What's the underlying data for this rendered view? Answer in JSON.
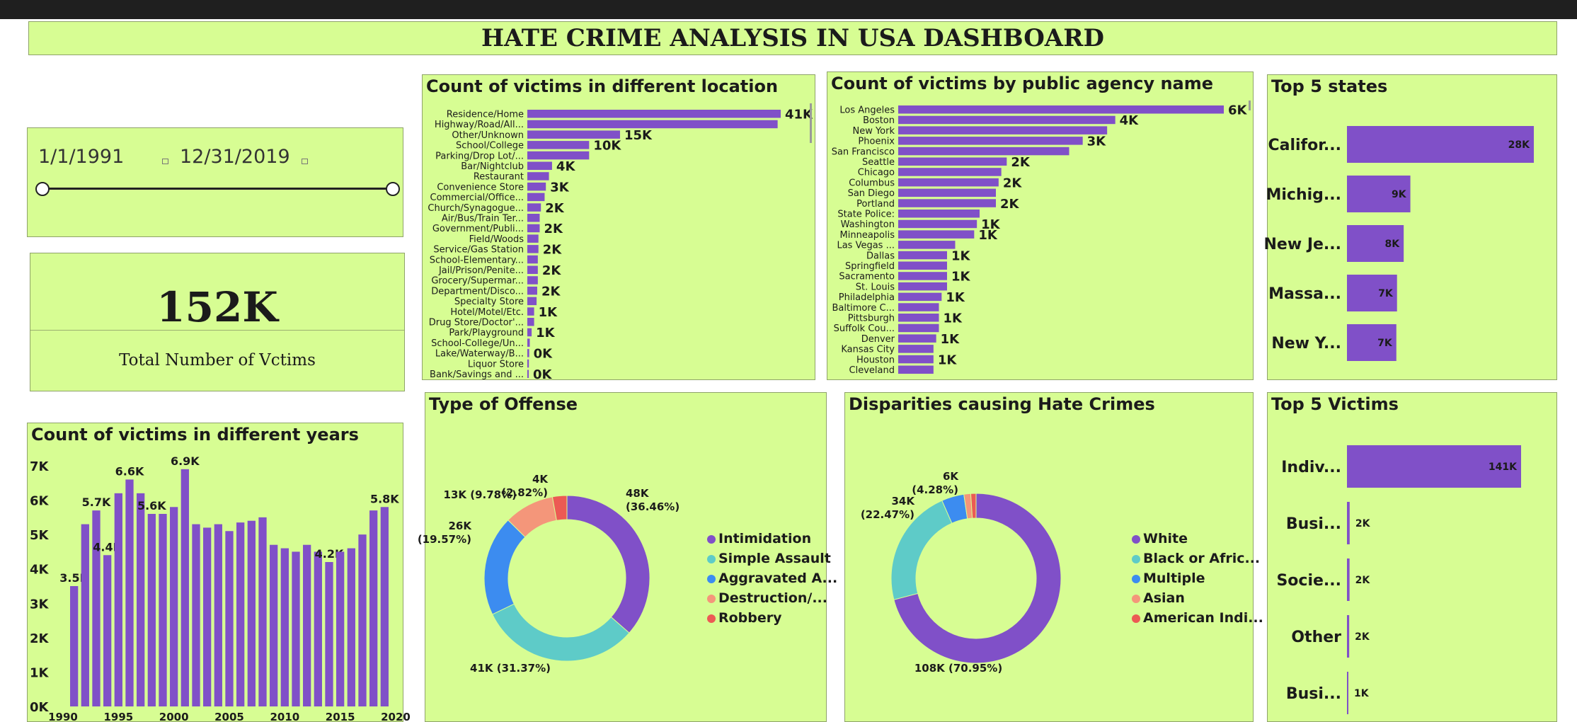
{
  "dashboard": {
    "title": "HATE CRIME ANALYSIS IN USA DASHBOARD",
    "colors": {
      "panel": "#d7fd93",
      "bar": "#8050c8",
      "topbar": "#1f1f1f"
    }
  },
  "date_slicer": {
    "start": "1/1/1991",
    "end": "12/31/2019",
    "range_position": [
      0,
      1
    ]
  },
  "kpi": {
    "value": "152K",
    "label": "Total Number of Vctims"
  },
  "chart_data": [
    {
      "id": "location",
      "type": "bar",
      "orientation": "horizontal",
      "title": "Count of victims in different location",
      "categories": [
        "Residence/Home",
        "Highway/Road/All...",
        "Other/Unknown",
        "School/College",
        "Parking/Drop Lot/...",
        "Bar/Nightclub",
        "Restaurant",
        "Convenience Store",
        "Commercial/Office...",
        "Church/Synagogue...",
        "Air/Bus/Train Ter...",
        "Government/Publi...",
        "Field/Woods",
        "Service/Gas Station",
        "School-Elementary...",
        "Jail/Prison/Penite...",
        "Grocery/Supermar...",
        "Department/Disco...",
        "Specialty Store",
        "Hotel/Motel/Etc.",
        "Drug Store/Doctor'...",
        "Park/Playground",
        "School-College/Un...",
        "Lake/Waterway/B...",
        "Liquor Store",
        "Bank/Savings and ..."
      ],
      "values": [
        41000,
        40500,
        15000,
        10000,
        10000,
        4000,
        3500,
        3000,
        2800,
        2200,
        2000,
        2000,
        1800,
        1800,
        1700,
        1700,
        1700,
        1600,
        1500,
        1100,
        1100,
        700,
        400,
        300,
        250,
        150
      ],
      "data_labels": [
        "41K",
        "",
        "15K",
        "10K",
        "",
        "4K",
        "",
        "3K",
        "",
        "2K",
        "",
        "2K",
        "",
        "2K",
        "",
        "2K",
        "",
        "2K",
        "",
        "1K",
        "",
        "1K",
        "",
        "0K",
        "",
        "0K"
      ]
    },
    {
      "id": "agency",
      "type": "bar",
      "orientation": "horizontal",
      "title": "Count of victims by public agency name",
      "categories": [
        "Los Angeles",
        "Boston",
        "New York",
        "Phoenix",
        "San Francisco",
        "Seattle",
        "Chicago",
        "Columbus",
        "San Diego",
        "Portland",
        "State Police:",
        "Washington",
        "Minneapolis",
        "Las Vegas ...",
        "Dallas",
        "Springfield",
        "Sacramento",
        "St. Louis",
        "Philadelphia",
        "Baltimore C...",
        "Pittsburgh",
        "Suffolk Cou...",
        "Denver",
        "Kansas City",
        "Houston",
        "Cleveland"
      ],
      "values": [
        6000,
        4000,
        3850,
        3400,
        3150,
        2000,
        1900,
        1850,
        1800,
        1800,
        1500,
        1450,
        1400,
        1050,
        900,
        900,
        900,
        900,
        800,
        750,
        750,
        750,
        700,
        650,
        650,
        650
      ],
      "data_labels": [
        "6K",
        "4K",
        "",
        "3K",
        "",
        "2K",
        "",
        "2K",
        "",
        "2K",
        "",
        "1K",
        "1K",
        "",
        "1K",
        "",
        "1K",
        "",
        "1K",
        "",
        "1K",
        "",
        "1K",
        "",
        "1K",
        ""
      ]
    },
    {
      "id": "states",
      "type": "bar",
      "orientation": "horizontal",
      "title": "Top 5 states",
      "categories": [
        "Califor...",
        "Michig...",
        "New Je...",
        "Massa...",
        "New Y..."
      ],
      "values": [
        28000,
        9500,
        8500,
        7500,
        7400
      ],
      "data_labels": [
        "28K",
        "9K",
        "8K",
        "7K",
        "7K"
      ]
    },
    {
      "id": "years",
      "type": "bar",
      "title": "Count of victims in different years",
      "x": [
        1991,
        1992,
        1993,
        1994,
        1995,
        1996,
        1997,
        1998,
        1999,
        2000,
        2001,
        2002,
        2003,
        2004,
        2005,
        2006,
        2007,
        2008,
        2009,
        2010,
        2011,
        2012,
        2013,
        2014,
        2015,
        2016,
        2017,
        2018,
        2019
      ],
      "values": [
        3500,
        5300,
        5700,
        4400,
        6200,
        6600,
        6200,
        5600,
        5600,
        5800,
        6900,
        5300,
        5200,
        5300,
        5100,
        5350,
        5400,
        5500,
        4700,
        4600,
        4500,
        4700,
        4500,
        4200,
        4500,
        4600,
        5000,
        5700,
        5800
      ],
      "data_labels": [
        "3.5K",
        "",
        "5.7K",
        "4.4K",
        "",
        "6.6K",
        "",
        "5.6K",
        "",
        "",
        "6.9K",
        "",
        "",
        "",
        "",
        "",
        "",
        "",
        "",
        "",
        "",
        "",
        "",
        "4.2K",
        "",
        "",
        "",
        "",
        "5.8K"
      ],
      "y_ticks": [
        "0K",
        "1K",
        "2K",
        "3K",
        "4K",
        "5K",
        "6K",
        "7K"
      ],
      "x_ticks": [
        "1990",
        "1995",
        "2000",
        "2005",
        "2010",
        "2015",
        "2020"
      ],
      "xlim": [
        1990,
        2020
      ],
      "ylim": [
        0,
        7000
      ]
    },
    {
      "id": "offense",
      "type": "pie",
      "donut": true,
      "title": "Type of Offense",
      "slices": [
        {
          "name": "Intimidation",
          "value": 36.46,
          "label": "48K\n(36.46%)",
          "color": "#8050c8"
        },
        {
          "name": "Simple Assault",
          "value": 31.37,
          "label": "41K (31.37%)",
          "color": "#5ecbc8"
        },
        {
          "name": "Aggravated A...",
          "value": 19.57,
          "label": "26K\n(19.57%)",
          "color": "#3c8cf0"
        },
        {
          "name": "Destruction/...",
          "value": 9.78,
          "label": "13K (9.78%)",
          "color": "#f4967a"
        },
        {
          "name": "Robbery",
          "value": 2.82,
          "label": "4K\n(2.82%)",
          "color": "#ec5a54"
        }
      ]
    },
    {
      "id": "disparities",
      "type": "pie",
      "donut": true,
      "title": "Disparities causing Hate Crimes",
      "slices": [
        {
          "name": "White",
          "value": 70.95,
          "label": "108K (70.95%)",
          "color": "#8050c8"
        },
        {
          "name": "Black or Afric...",
          "value": 22.47,
          "label": "34K\n(22.47%)",
          "color": "#5ecbc8"
        },
        {
          "name": "Multiple",
          "value": 4.28,
          "label": "6K\n(4.28%)",
          "color": "#3c8cf0"
        },
        {
          "name": "Asian",
          "value": 1.3,
          "label": "",
          "color": "#f4967a"
        },
        {
          "name": "American Indi...",
          "value": 1.0,
          "label": "",
          "color": "#ec5a54"
        }
      ]
    },
    {
      "id": "victims",
      "type": "bar",
      "orientation": "horizontal",
      "title": "Top 5 Victims",
      "categories": [
        "Indiv...",
        "Busi...",
        "Socie...",
        "Other",
        "Busi..."
      ],
      "values": [
        141000,
        2200,
        2100,
        1800,
        1100
      ],
      "data_labels": [
        "141K",
        "2K",
        "2K",
        "2K",
        "1K"
      ]
    }
  ]
}
